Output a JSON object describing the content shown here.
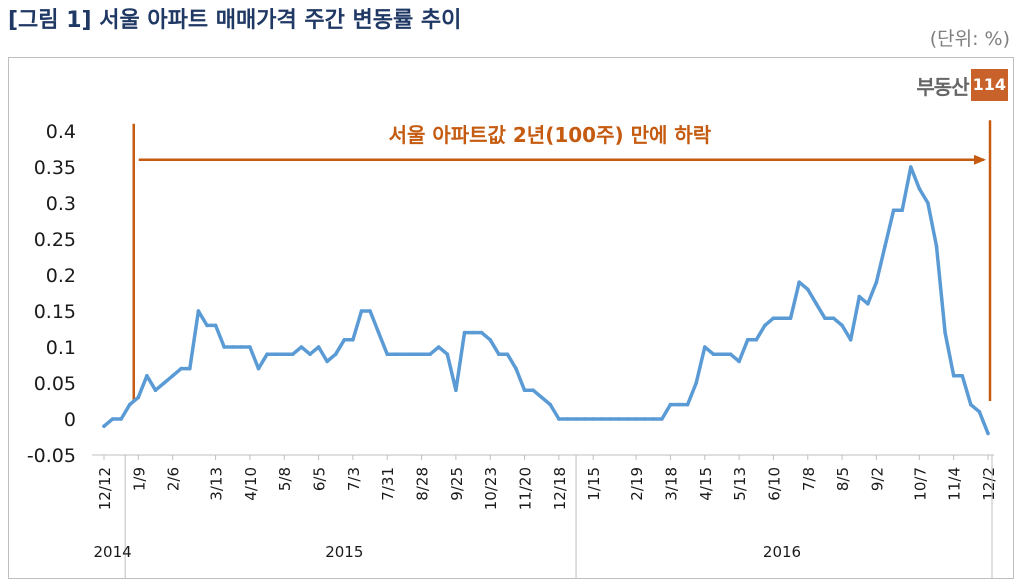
{
  "figure": {
    "title": "[그림 1] 서울 아파트 매매가격 주간 변동률 추이",
    "unit": "(단위: %)",
    "logo_text": "부동산",
    "logo_num": "114"
  },
  "colors": {
    "line": "#5b9bd5",
    "accent": "#c55a11",
    "title": "#1f3864"
  },
  "chart_data": {
    "type": "line",
    "annotation": "서울 아파트값 2년(100주) 만에 하락",
    "ylim": [
      -0.05,
      0.4
    ],
    "yticks": [
      "0.4",
      "0.35",
      "0.3",
      "0.25",
      "0.2",
      "0.15",
      "0.1",
      "0.05",
      "0",
      "-0.05"
    ],
    "xticks": [
      {
        "label": "12/12",
        "i": 0
      },
      {
        "label": "1/9",
        "i": 4
      },
      {
        "label": "2/6",
        "i": 8
      },
      {
        "label": "3/13",
        "i": 13
      },
      {
        "label": "4/10",
        "i": 17
      },
      {
        "label": "5/8",
        "i": 21
      },
      {
        "label": "6/5",
        "i": 25
      },
      {
        "label": "7/3",
        "i": 29
      },
      {
        "label": "7/31",
        "i": 33
      },
      {
        "label": "8/28",
        "i": 37
      },
      {
        "label": "9/25",
        "i": 41
      },
      {
        "label": "10/23",
        "i": 45
      },
      {
        "label": "11/20",
        "i": 49
      },
      {
        "label": "12/18",
        "i": 53
      },
      {
        "label": "1/15",
        "i": 57
      },
      {
        "label": "2/19",
        "i": 62
      },
      {
        "label": "3/18",
        "i": 66
      },
      {
        "label": "4/15",
        "i": 70
      },
      {
        "label": "5/13",
        "i": 74
      },
      {
        "label": "6/10",
        "i": 78
      },
      {
        "label": "7/8",
        "i": 82
      },
      {
        "label": "8/5",
        "i": 86
      },
      {
        "label": "9/2",
        "i": 90
      },
      {
        "label": "10/7",
        "i": 95
      },
      {
        "label": "11/4",
        "i": 99
      },
      {
        "label": "12/2",
        "i": 103
      }
    ],
    "years": [
      {
        "label": "2014",
        "i": 1
      },
      {
        "label": "2015",
        "i": 28
      },
      {
        "label": "2016",
        "i": 79
      }
    ],
    "x": [
      "12/12",
      "12/19",
      "12/26",
      "1/2",
      "1/9",
      "1/16",
      "1/23",
      "1/30",
      "2/6",
      "2/13",
      "2/20",
      "2/27",
      "3/6",
      "3/13",
      "3/20",
      "3/27",
      "4/3",
      "4/10",
      "4/17",
      "4/24",
      "5/1",
      "5/8",
      "5/15",
      "5/22",
      "5/29",
      "6/5",
      "6/12",
      "6/19",
      "6/26",
      "7/3",
      "7/10",
      "7/17",
      "7/24",
      "7/31",
      "8/7",
      "8/14",
      "8/21",
      "8/28",
      "9/4",
      "9/11",
      "9/18",
      "9/25",
      "10/2",
      "10/9",
      "10/16",
      "10/23",
      "10/30",
      "11/6",
      "11/13",
      "11/20",
      "11/27",
      "12/4",
      "12/11",
      "12/18",
      "12/25",
      "1/1",
      "1/8",
      "1/15",
      "1/22",
      "1/29",
      "2/5",
      "2/12",
      "2/19",
      "2/26",
      "3/4",
      "3/11",
      "3/18",
      "3/25",
      "4/1",
      "4/8",
      "4/15",
      "4/22",
      "4/29",
      "5/6",
      "5/13",
      "5/20",
      "5/27",
      "6/3",
      "6/10",
      "6/17",
      "6/24",
      "7/1",
      "7/8",
      "7/15",
      "7/22",
      "7/29",
      "8/5",
      "8/12",
      "8/19",
      "8/26",
      "9/2",
      "9/9",
      "9/16",
      "9/23",
      "9/30",
      "10/7",
      "10/14",
      "10/21",
      "10/28",
      "11/4",
      "11/11",
      "11/18",
      "11/25",
      "12/2"
    ],
    "values": [
      -0.01,
      0,
      0,
      0.02,
      0.03,
      0.06,
      0.04,
      0.05,
      0.06,
      0.07,
      0.07,
      0.15,
      0.13,
      0.13,
      0.1,
      0.1,
      0.1,
      0.1,
      0.07,
      0.09,
      0.09,
      0.09,
      0.09,
      0.1,
      0.09,
      0.1,
      0.08,
      0.09,
      0.11,
      0.11,
      0.15,
      0.15,
      0.12,
      0.09,
      0.09,
      0.09,
      0.09,
      0.09,
      0.09,
      0.1,
      0.09,
      0.04,
      0.12,
      0.12,
      0.12,
      0.11,
      0.09,
      0.09,
      0.07,
      0.04,
      0.04,
      0.03,
      0.02,
      0,
      0,
      0,
      0,
      0,
      0,
      0,
      0,
      0,
      0,
      0,
      0,
      0,
      0.02,
      0.02,
      0.02,
      0.05,
      0.1,
      0.09,
      0.09,
      0.09,
      0.08,
      0.11,
      0.11,
      0.13,
      0.14,
      0.14,
      0.14,
      0.19,
      0.18,
      0.16,
      0.14,
      0.14,
      0.13,
      0.11,
      0.17,
      0.16,
      0.19,
      0.24,
      0.29,
      0.29,
      0.35,
      0.32,
      0.3,
      0.24,
      0.12,
      0.06,
      0.06,
      0.02,
      0.01,
      -0.02
    ]
  }
}
